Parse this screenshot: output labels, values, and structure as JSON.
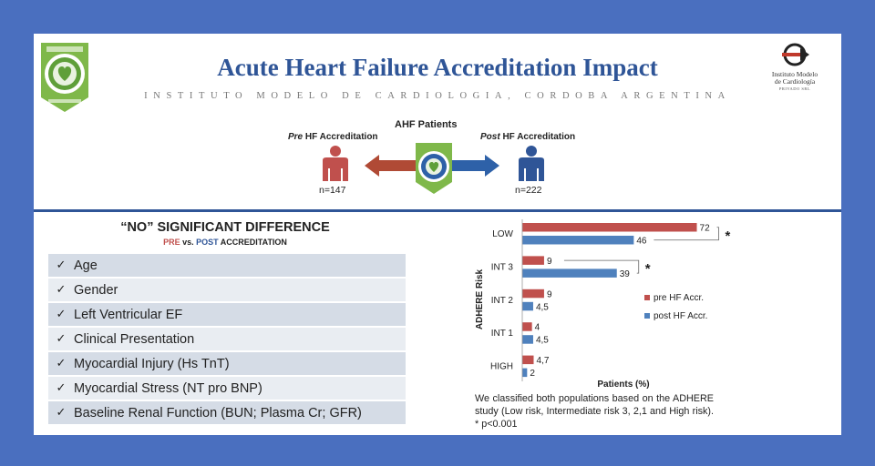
{
  "header": {
    "title": "Acute Heart Failure Accreditation Impact",
    "subtitle": "INSTITUTO MODELO DE CARDIOLOGIA, CORDOBA ARGENTINA",
    "logo_line1": "Instituto Modelo",
    "logo_line2": "de Cardiología",
    "logo_line3": "PRIVADO SRL"
  },
  "patients": {
    "heading": "AHF Patients",
    "pre_italic": "Pre",
    "pre_rest": " HF Accreditation",
    "post_italic": "Post",
    "post_rest": " HF Accreditation",
    "pre_n": "n=147",
    "post_n": "n=222"
  },
  "no_difference": {
    "heading": "“NO” SIGNIFICANT DIFFERENCE",
    "pre_label": "PRE",
    "vs": " vs. ",
    "post_label": "POST",
    "suffix": " ACCREDITATION",
    "items": [
      "Age",
      "Gender",
      "Left Ventricular EF",
      "Clinical Presentation",
      "Myocardial Injury (Hs TnT)",
      "Myocardial Stress (NT pro BNP)",
      "Baseline Renal Function (BUN; Plasma Cr; GFR)"
    ]
  },
  "colors": {
    "pre": "#c0504d",
    "post": "#4f81bd",
    "title": "#2f5597"
  },
  "chart_data": {
    "type": "bar",
    "orientation": "horizontal",
    "categories": [
      "LOW",
      "INT 3",
      "INT 2",
      "INT 1",
      "HIGH"
    ],
    "series": [
      {
        "name": "pre HF Accr.",
        "values": [
          72,
          9,
          9,
          4,
          4.7
        ],
        "labels": [
          "72",
          "9",
          "9",
          "4",
          "4,7"
        ]
      },
      {
        "name": "post HF Accr.",
        "values": [
          46,
          39,
          4.5,
          4.5,
          2
        ],
        "labels": [
          "46",
          "39",
          "4,5",
          "4,5",
          "2"
        ]
      }
    ],
    "xlabel": "Patients (%)",
    "ylabel": "ADHERE Risk",
    "xlim": [
      0,
      80
    ],
    "significance": [
      {
        "category": "LOW",
        "marker": "*"
      },
      {
        "category": "INT 3",
        "marker": "*"
      }
    ],
    "legend_position": "right"
  },
  "footnote": "We classified both populations based on the ADHERE study (Low risk, Intermediate risk 3, 2,1 and High risk). * p<0.001"
}
